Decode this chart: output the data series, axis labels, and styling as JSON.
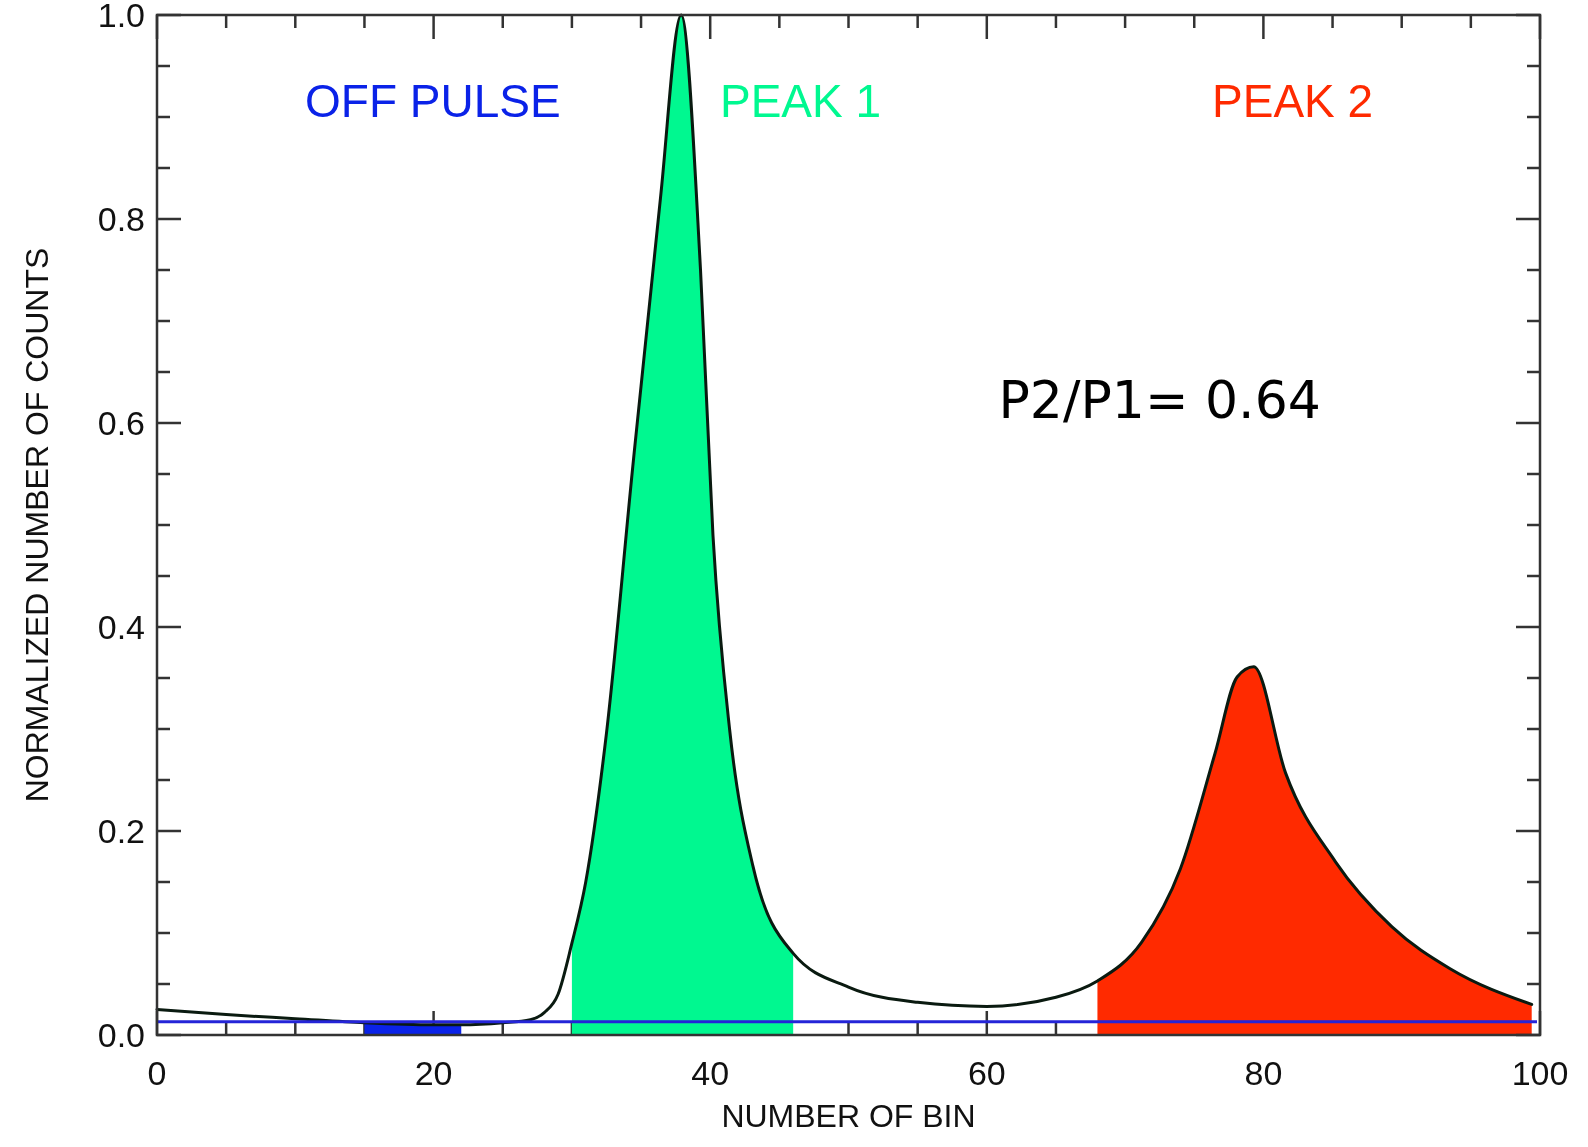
{
  "chart_data": {
    "type": "area",
    "xlabel": "NUMBER OF BIN",
    "ylabel": "NORMALIZED NUMBER OF COUNTS",
    "xlim": [
      0,
      100
    ],
    "xticks": [
      0,
      {
        "value": 5,
        "label": null
      },
      {
        "value": 10,
        "label": null
      },
      {
        "value": 15,
        "label": null
      },
      20,
      {
        "value": 25,
        "label": null
      },
      {
        "value": 30,
        "label": null
      },
      {
        "value": 35,
        "label": null
      },
      40,
      {
        "value": 45,
        "label": null
      },
      {
        "value": 50,
        "label": null
      },
      {
        "value": 55,
        "label": null
      },
      60,
      {
        "value": 65,
        "label": null
      },
      {
        "value": 70,
        "label": null
      },
      {
        "value": 75,
        "label": null
      },
      80,
      {
        "value": 85,
        "label": null
      },
      {
        "value": 90,
        "label": null
      },
      {
        "value": 95,
        "label": null
      },
      100
    ],
    "ylim": [
      0,
      1
    ],
    "yticks": [
      {
        "value": 0,
        "label": "0.0"
      },
      {
        "value": 0.05,
        "label": null
      },
      {
        "value": 0.1,
        "label": null
      },
      {
        "value": 0.15,
        "label": null
      },
      {
        "value": 0.2,
        "label": "0.2"
      },
      {
        "value": 0.25,
        "label": null
      },
      {
        "value": 0.3,
        "label": null
      },
      {
        "value": 0.35,
        "label": null
      },
      {
        "value": 0.4,
        "label": "0.4"
      },
      {
        "value": 0.45,
        "label": null
      },
      {
        "value": 0.5,
        "label": null
      },
      {
        "value": 0.55,
        "label": null
      },
      {
        "value": 0.6,
        "label": "0.6"
      },
      {
        "value": 0.65,
        "label": null
      },
      {
        "value": 0.7,
        "label": null
      },
      {
        "value": 0.75,
        "label": null
      },
      {
        "value": 0.8,
        "label": "0.8"
      },
      {
        "value": 0.85,
        "label": null
      },
      {
        "value": 0.9,
        "label": null
      },
      {
        "value": 0.95,
        "label": null
      },
      {
        "value": 1,
        "label": "1.0"
      }
    ],
    "series": [
      {
        "name": "OFF PULSE",
        "color": "#0a22e8",
        "x": [
          15,
          20,
          22
        ],
        "values": [
          0.012,
          0.01,
          0.01
        ]
      },
      {
        "name": "PEAK 1",
        "color": "#00f890",
        "x": [
          30,
          31,
          32.5,
          34.4,
          36.4,
          37.9,
          39.3,
          40.2,
          41.4,
          43.1,
          46
        ],
        "values": [
          0.09,
          0.15,
          0.296,
          0.557,
          0.82,
          1.0,
          0.75,
          0.49,
          0.3,
          0.165,
          0.08
        ]
      },
      {
        "name": "PEAK 2",
        "color": "#ff2a00",
        "x": [
          68,
          71.2,
          74,
          76.5,
          78.1,
          79.3,
          81.6,
          85.2,
          89.3,
          93.5,
          99.4
        ],
        "values": [
          0.053,
          0.091,
          0.163,
          0.276,
          0.351,
          0.361,
          0.257,
          0.17,
          0.106,
          0.065,
          0.03
        ]
      },
      {
        "type": "line",
        "color": "#0a1a10",
        "x": [
          0,
          5,
          10,
          15,
          20,
          22,
          25,
          27,
          28,
          29,
          30,
          31,
          32.5,
          34.4,
          36.4,
          37.9,
          39.3,
          40.2,
          41.4,
          43.1,
          46,
          50,
          55,
          60,
          65,
          68,
          71.2,
          74,
          76.5,
          78.1,
          79.3,
          81.6,
          85.2,
          89.3,
          93.5,
          99.4
        ],
        "values": [
          0.025,
          0.02,
          0.016,
          0.012,
          0.01,
          0.01,
          0.012,
          0.015,
          0.022,
          0.04,
          0.09,
          0.15,
          0.296,
          0.557,
          0.82,
          1.0,
          0.75,
          0.49,
          0.3,
          0.165,
          0.08,
          0.047,
          0.032,
          0.028,
          0.037,
          0.053,
          0.091,
          0.163,
          0.276,
          0.351,
          0.361,
          0.257,
          0.17,
          0.106,
          0.065,
          0.03
        ]
      }
    ],
    "ref_lines": [
      {
        "axis": "y",
        "value": 0.013,
        "color": "#2424d8"
      }
    ],
    "annotations": [
      "P2/P1= 0.64"
    ]
  }
}
